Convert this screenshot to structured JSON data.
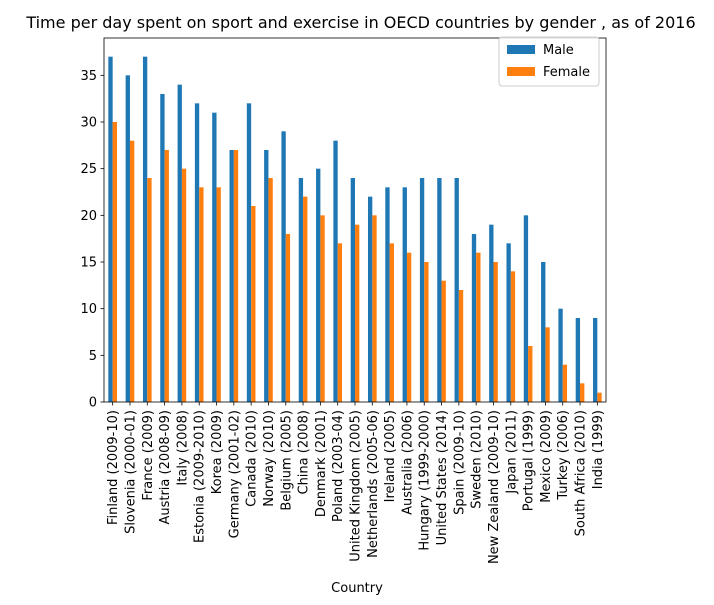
{
  "chart_data": {
    "type": "bar",
    "title": "Time per day spent on sport and exercise in OECD countries by gender , as of 2016",
    "xlabel": "Country",
    "ylabel": "",
    "ylim": [
      0,
      39
    ],
    "yticks": [
      0,
      5,
      10,
      15,
      20,
      25,
      30,
      35
    ],
    "grid": false,
    "legend_position": "top-right",
    "categories": [
      "Finland (2009-10)",
      "Slovenia (2000-01)",
      "France (2009)",
      "Austria (2008-09)",
      "Italy (2008)",
      "Estonia (2009-2010)",
      "Korea (2009)",
      "Germany (2001-02)",
      "Canada (2010)",
      "Norway (2010)",
      "Belgium (2005)",
      "China (2008)",
      "Denmark (2001)",
      "Poland (2003-04)",
      "United Kingdom (2005)",
      "Netherlands (2005-06)",
      "Ireland (2005)",
      "Australia (2006)",
      "Hungary (1999-2000)",
      "United States (2014)",
      "Spain (2009-10)",
      "Sweden (2010)",
      "New Zealand (2009-10)",
      "Japan (2011)",
      "Portugal (1999)",
      "Mexico (2009)",
      "Turkey (2006)",
      "South Africa (2010)",
      "India (1999)"
    ],
    "series": [
      {
        "name": "Male",
        "color": "#1f77b4",
        "values": [
          37,
          35,
          37,
          33,
          34,
          32,
          31,
          27,
          32,
          27,
          29,
          24,
          25,
          28,
          24,
          22,
          23,
          23,
          24,
          24,
          24,
          18,
          19,
          17,
          20,
          15,
          10,
          9,
          9
        ]
      },
      {
        "name": "Female",
        "color": "#ff7f0e",
        "values": [
          30,
          28,
          24,
          27,
          25,
          23,
          23,
          27,
          21,
          24,
          18,
          22,
          20,
          17,
          19,
          20,
          17,
          16,
          15,
          13,
          12,
          16,
          15,
          14,
          6,
          8,
          4,
          2,
          1
        ]
      }
    ]
  }
}
